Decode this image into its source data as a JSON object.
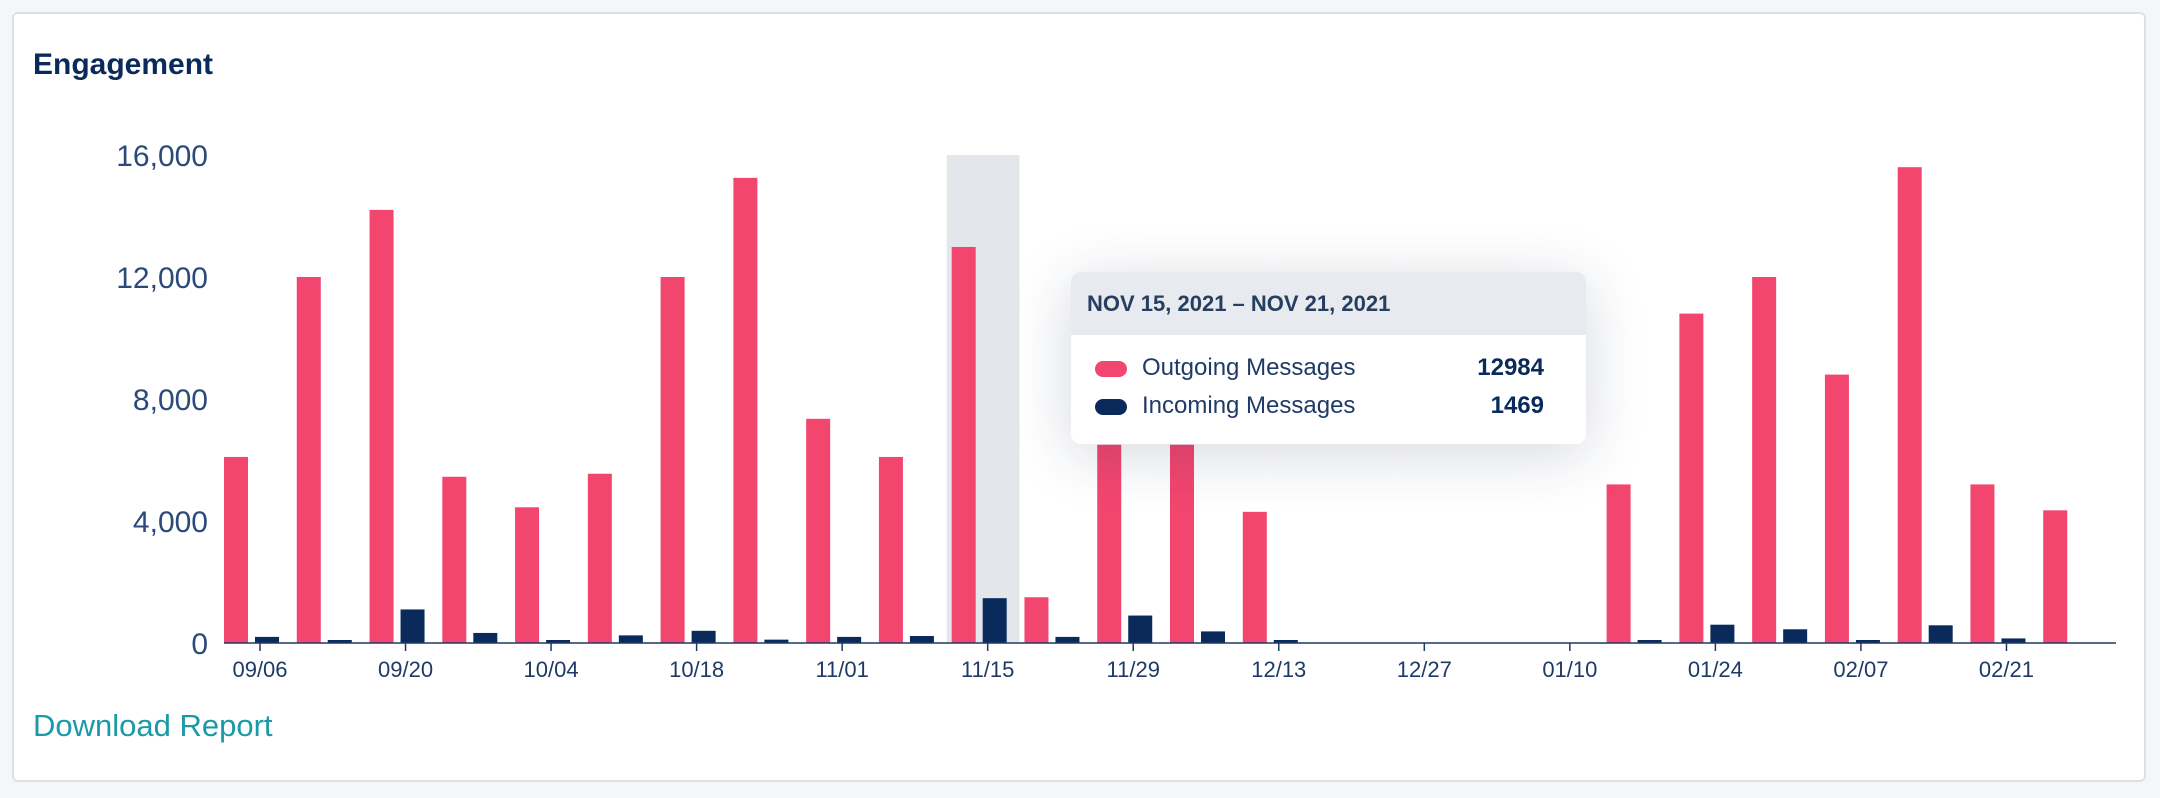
{
  "card": {
    "title": "Engagement",
    "download_label": "Download Report"
  },
  "colors": {
    "outgoing": "#f2466f",
    "incoming": "#0b2a5c",
    "highlight": "#e3e7ec",
    "accent_link": "#1a9aa8"
  },
  "tooltip": {
    "header": "NOV 15, 2021 – NOV 21, 2021",
    "rows": [
      {
        "label": "Outgoing Messages",
        "value": "12984",
        "color": "#f2466f"
      },
      {
        "label": "Incoming Messages",
        "value": "1469",
        "color": "#0b2a5c"
      }
    ]
  },
  "chart_data": {
    "type": "bar",
    "title": "Engagement",
    "x_tick_labels": [
      "09/06",
      "09/20",
      "10/04",
      "10/18",
      "11/01",
      "11/15",
      "11/29",
      "12/13",
      "12/27",
      "01/10",
      "01/24",
      "02/07",
      "02/21"
    ],
    "x_tick_every": 2,
    "y_tick_labels": [
      "0",
      "4,000",
      "8,000",
      "12,000",
      "16,000"
    ],
    "ylim": [
      0,
      16000
    ],
    "highlighted_index": 10,
    "series": [
      {
        "name": "Outgoing Messages",
        "color": "#f2466f",
        "values": [
          6100,
          12000,
          14200,
          5450,
          4450,
          5550,
          12000,
          15250,
          7350,
          6100,
          12984,
          1500,
          6500,
          6500,
          4300,
          0,
          0,
          0,
          0,
          5200,
          10800,
          12000,
          8800,
          15600,
          5200,
          4350
        ]
      },
      {
        "name": "Incoming Messages",
        "color": "#0b2a5c",
        "values": [
          200,
          80,
          1100,
          330,
          80,
          250,
          400,
          110,
          200,
          230,
          1469,
          200,
          900,
          380,
          20,
          0,
          0,
          0,
          0,
          80,
          600,
          450,
          30,
          580,
          150,
          0
        ]
      }
    ]
  }
}
